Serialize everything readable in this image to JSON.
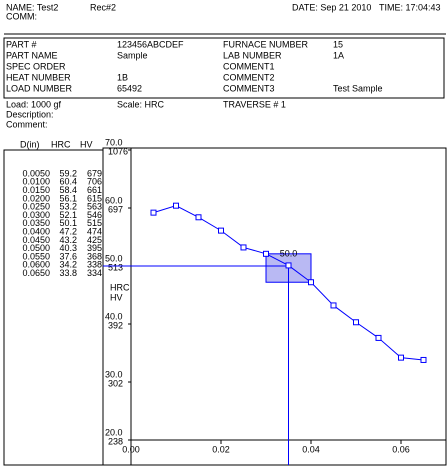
{
  "header": {
    "name": "NAME: Test2",
    "rec": "Rec#2",
    "date": "DATE: Sep 21 2010",
    "time": "TIME: 17:04:43",
    "comm": "COMM:"
  },
  "info": {
    "left": [
      {
        "label": "PART #",
        "value": "123456ABCDEF"
      },
      {
        "label": "PART NAME",
        "value": "Sample"
      },
      {
        "label": "SPEC ORDER"
      },
      {
        "label": "HEAT NUMBER",
        "value": "1B"
      },
      {
        "label": "LOAD NUMBER",
        "value": "65492"
      }
    ],
    "right": [
      {
        "label": "FURNACE NUMBER",
        "value": "15"
      },
      {
        "label": "LAB NUMBER",
        "value": "1A"
      },
      {
        "label": "COMMENT1"
      },
      {
        "label": "COMMENT2"
      },
      {
        "label": "COMMENT3",
        "value": "Test Sample"
      }
    ]
  },
  "test": {
    "load": "Load:  1000 gf",
    "scale": "Scale: HRC",
    "traverse": "TRAVERSE #  1",
    "description": "Description:",
    "comment": "Comment:"
  },
  "table": {
    "columns": [
      "D(in)",
      "HRC",
      "HV"
    ],
    "rows": [
      [
        "0.0050",
        "59.2",
        "679"
      ],
      [
        "0.0100",
        "60.4",
        "706"
      ],
      [
        "0.0150",
        "58.4",
        "661"
      ],
      [
        "0.0200",
        "56.1",
        "615"
      ],
      [
        "0.0250",
        "53.2",
        "563"
      ],
      [
        "0.0300",
        "52.1",
        "546"
      ],
      [
        "0.0350",
        "50.1",
        "515"
      ],
      [
        "0.0400",
        "47.2",
        "474"
      ],
      [
        "0.0450",
        "43.2",
        "425"
      ],
      [
        "0.0500",
        "40.3",
        "395"
      ],
      [
        "0.0550",
        "37.6",
        "368"
      ],
      [
        "0.0600",
        "34.2",
        "338"
      ],
      [
        "0.0650",
        "33.8",
        "334"
      ]
    ]
  },
  "chart_data": {
    "type": "line",
    "x": [
      0.005,
      0.01,
      0.015,
      0.02,
      0.025,
      0.03,
      0.035,
      0.04,
      0.045,
      0.05,
      0.055,
      0.06,
      0.065
    ],
    "values": [
      59.2,
      60.4,
      58.4,
      56.1,
      53.2,
      52.1,
      50.1,
      47.2,
      43.2,
      40.3,
      37.6,
      34.2,
      33.8
    ],
    "color": "#0000ff",
    "ylabel": "HRC",
    "y2label": "HV",
    "xlim": [
      0,
      0.07
    ],
    "ylim": [
      20,
      70
    ],
    "xticks": [
      {
        "value": 0,
        "label": "0.00"
      },
      {
        "value": 0.02,
        "label": "0.02"
      },
      {
        "value": 0.04,
        "label": "0.04"
      },
      {
        "value": 0.06,
        "label": "0.06"
      }
    ],
    "yticks": [
      {
        "value": 20,
        "label": "20.0"
      },
      {
        "value": 30,
        "label": "30.0"
      },
      {
        "value": 40,
        "label": "40.0"
      },
      {
        "value": 50,
        "label": "50.0"
      },
      {
        "value": 60,
        "label": "60.0"
      },
      {
        "value": 70,
        "label": "70.0"
      }
    ],
    "hv_ticks": [
      {
        "value": 20,
        "label": "238"
      },
      {
        "value": 30,
        "label": "302"
      },
      {
        "value": 40,
        "label": "392"
      },
      {
        "value": 50,
        "label": "513"
      },
      {
        "value": 60,
        "label": "697"
      },
      {
        "value": 70,
        "label": "1076"
      }
    ],
    "threshold": {
      "value": 50,
      "label": "50.0",
      "x": 0.035
    }
  }
}
